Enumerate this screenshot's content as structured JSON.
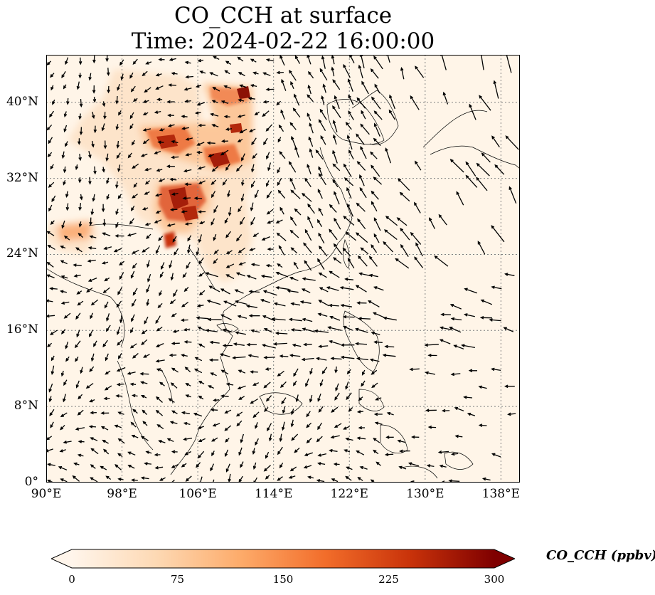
{
  "title": {
    "line1": "CO_CCH at surface",
    "line2": "Time: 2024-02-22 16:00:00"
  },
  "map": {
    "lon_range": [
      90,
      140
    ],
    "lat_range": [
      0,
      45
    ],
    "lat_ticks": [
      {
        "value": 0,
        "label": "0°"
      },
      {
        "value": 8,
        "label": "8°N"
      },
      {
        "value": 16,
        "label": "16°N"
      },
      {
        "value": 24,
        "label": "24°N"
      },
      {
        "value": 32,
        "label": "32°N"
      },
      {
        "value": 40,
        "label": "40°N"
      }
    ],
    "lon_ticks": [
      {
        "value": 90,
        "label": "90°E"
      },
      {
        "value": 98,
        "label": "98°E"
      },
      {
        "value": 106,
        "label": "106°E"
      },
      {
        "value": 114,
        "label": "114°E"
      },
      {
        "value": 122,
        "label": "122°E"
      },
      {
        "value": 130,
        "label": "130°E"
      },
      {
        "value": 138,
        "label": "138°E"
      }
    ],
    "gridlines": true,
    "background_color": "#fff5e8",
    "coastline_color": "#000000",
    "wind_arrow_color": "#000000"
  },
  "colorbar": {
    "label": "CO_CCH (ppbv)",
    "min": 0,
    "max": 300,
    "ticks": [
      0,
      75,
      150,
      225,
      300
    ],
    "extend": "both",
    "colormap": [
      "#fff5eb",
      "#fdd9b4",
      "#fdab6a",
      "#f26d2a",
      "#c9330a",
      "#7f0000"
    ]
  }
}
